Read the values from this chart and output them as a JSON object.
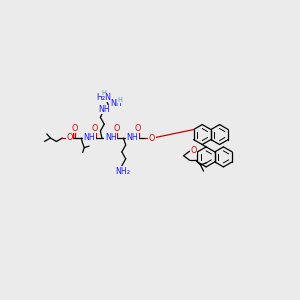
{
  "bg_color": "#ebebeb",
  "black": "#000000",
  "blue": "#1a1aff",
  "red": "#cc0000",
  "teal": "#5599aa",
  "figsize": [
    3.0,
    3.0
  ],
  "dpi": 100,
  "xlim": [
    0,
    300
  ],
  "ylim": [
    0,
    300
  ]
}
